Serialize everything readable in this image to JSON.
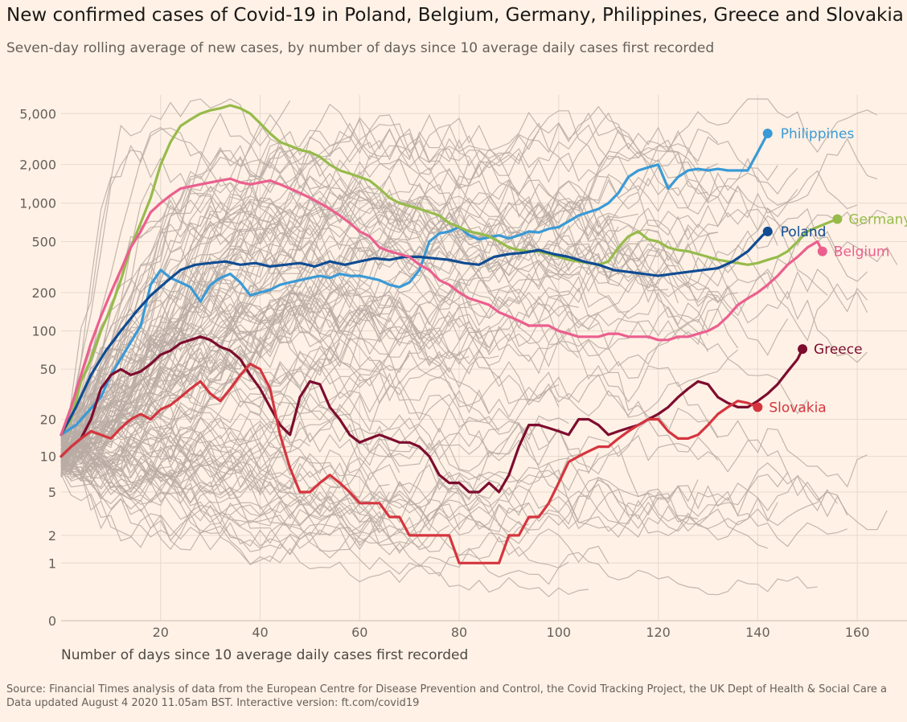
{
  "title": "New confirmed cases of Covid-19 in Poland, Belgium, Germany, Philippines, Greece and Slovakia",
  "subtitle": "Seven-day rolling average of new cases, by number of days since 10 average daily cases first recorded",
  "source_line1": "Source: Financial Times analysis of data from the European Centre for Disease Prevention and Control, the Covid Tracking Project, the UK Dept of Health & Social Care a",
  "source_line2": "Data updated August 4 2020 11.05am BST. Interactive version: ft.com/covid19",
  "chart_data": {
    "type": "line",
    "title": "New confirmed cases of Covid-19 in Poland, Belgium, Germany, Philippines, Greece and Slovakia",
    "xlabel": "Number of days since 10 average daily cases first recorded",
    "ylabel": "",
    "x_scale": "linear",
    "y_scale": "log",
    "xlim": [
      0,
      170
    ],
    "ylim": [
      0,
      7000
    ],
    "x_ticks": [
      20,
      40,
      60,
      80,
      100,
      120,
      140,
      160
    ],
    "y_ticks": [
      0,
      1,
      2,
      5,
      10,
      20,
      50,
      100,
      200,
      500,
      1000,
      2000,
      5000
    ],
    "y_tick_labels": [
      "0",
      "1",
      "2",
      "5",
      "10",
      "20",
      "50",
      "100",
      "200",
      "500",
      "1,000",
      "2,000",
      "5,000"
    ],
    "grid": true,
    "colors": {
      "background": "#fff1e5",
      "grid": "#e6d9ce",
      "other_countries": "#b8aca5",
      "Philippines": "#3a9ad6",
      "Germany": "#96bb4b",
      "Poland": "#0f4c93",
      "Belgium": "#eb5f8f",
      "Greece": "#7d0d2f",
      "Slovakia": "#d5353f"
    },
    "series": [
      {
        "name": "Philippines",
        "x": [
          0,
          3,
          5,
          8,
          10,
          13,
          16,
          18,
          20,
          22,
          24,
          26,
          28,
          30,
          32,
          34,
          36,
          38,
          40,
          42,
          44,
          46,
          48,
          50,
          52,
          54,
          56,
          58,
          60,
          62,
          64,
          66,
          68,
          70,
          72,
          74,
          76,
          78,
          80,
          82,
          84,
          86,
          88,
          90,
          92,
          94,
          96,
          98,
          100,
          102,
          104,
          106,
          108,
          110,
          112,
          114,
          116,
          118,
          120,
          122,
          124,
          126,
          128,
          130,
          132,
          134,
          136,
          138,
          140,
          142
        ],
        "y": [
          15,
          18,
          22,
          30,
          45,
          70,
          110,
          230,
          300,
          260,
          240,
          220,
          170,
          230,
          260,
          280,
          240,
          190,
          200,
          210,
          230,
          240,
          250,
          260,
          270,
          260,
          280,
          270,
          270,
          260,
          250,
          230,
          220,
          240,
          300,
          500,
          580,
          600,
          650,
          560,
          520,
          540,
          560,
          530,
          560,
          600,
          590,
          630,
          650,
          720,
          800,
          850,
          900,
          1000,
          1200,
          1600,
          1800,
          1900,
          2000,
          1300,
          1600,
          1800,
          1850,
          1800,
          1850,
          1800,
          1800,
          1800,
          2500,
          3500
        ]
      },
      {
        "name": "Germany",
        "x": [
          0,
          2,
          4,
          6,
          8,
          10,
          12,
          14,
          16,
          18,
          20,
          22,
          24,
          26,
          28,
          30,
          32,
          34,
          36,
          38,
          40,
          42,
          44,
          46,
          48,
          50,
          52,
          54,
          56,
          58,
          60,
          62,
          64,
          66,
          68,
          70,
          72,
          74,
          76,
          78,
          80,
          82,
          84,
          86,
          88,
          90,
          92,
          94,
          96,
          98,
          100,
          102,
          104,
          106,
          108,
          110,
          112,
          114,
          116,
          118,
          120,
          122,
          124,
          126,
          128,
          130,
          132,
          134,
          136,
          138,
          140,
          142,
          144,
          146,
          148,
          150,
          152,
          154,
          156
        ],
        "y": [
          15,
          20,
          40,
          60,
          100,
          150,
          250,
          450,
          700,
          1100,
          2000,
          3000,
          4000,
          4500,
          5000,
          5300,
          5500,
          5800,
          5500,
          5000,
          4200,
          3500,
          3000,
          2800,
          2600,
          2500,
          2300,
          2000,
          1800,
          1700,
          1600,
          1500,
          1300,
          1100,
          1000,
          950,
          900,
          850,
          800,
          700,
          650,
          600,
          580,
          550,
          500,
          450,
          430,
          420,
          420,
          400,
          380,
          360,
          350,
          340,
          330,
          350,
          450,
          550,
          600,
          520,
          500,
          450,
          430,
          420,
          400,
          380,
          360,
          350,
          340,
          330,
          340,
          360,
          380,
          420,
          500,
          600,
          650,
          700,
          750
        ]
      },
      {
        "name": "Poland",
        "x": [
          0,
          3,
          6,
          9,
          12,
          15,
          18,
          21,
          24,
          27,
          30,
          33,
          36,
          39,
          42,
          45,
          48,
          51,
          54,
          57,
          60,
          63,
          66,
          69,
          72,
          75,
          78,
          81,
          84,
          87,
          90,
          93,
          96,
          99,
          102,
          105,
          108,
          111,
          114,
          117,
          120,
          123,
          126,
          129,
          132,
          135,
          138,
          141,
          142
        ],
        "y": [
          15,
          25,
          45,
          70,
          100,
          140,
          190,
          240,
          300,
          330,
          340,
          350,
          330,
          340,
          320,
          330,
          340,
          320,
          350,
          330,
          350,
          370,
          360,
          380,
          380,
          370,
          360,
          340,
          330,
          380,
          400,
          410,
          430,
          400,
          380,
          350,
          330,
          300,
          290,
          280,
          270,
          280,
          290,
          300,
          310,
          350,
          420,
          560,
          600
        ]
      },
      {
        "name": "Belgium",
        "x": [
          0,
          2,
          4,
          6,
          8,
          10,
          12,
          14,
          16,
          18,
          20,
          22,
          24,
          26,
          28,
          30,
          32,
          34,
          36,
          38,
          40,
          42,
          44,
          46,
          48,
          50,
          52,
          54,
          56,
          58,
          60,
          62,
          64,
          66,
          68,
          70,
          72,
          74,
          76,
          78,
          80,
          82,
          84,
          86,
          88,
          90,
          92,
          94,
          96,
          98,
          100,
          102,
          104,
          106,
          108,
          110,
          112,
          114,
          116,
          118,
          120,
          122,
          124,
          126,
          128,
          130,
          132,
          134,
          136,
          138,
          140,
          142,
          144,
          146,
          148,
          150,
          152,
          153
        ],
        "y": [
          15,
          25,
          45,
          80,
          130,
          200,
          300,
          450,
          600,
          850,
          1000,
          1150,
          1300,
          1350,
          1400,
          1450,
          1500,
          1550,
          1450,
          1400,
          1450,
          1500,
          1400,
          1300,
          1200,
          1100,
          1000,
          900,
          800,
          700,
          600,
          550,
          450,
          420,
          400,
          380,
          330,
          300,
          250,
          230,
          200,
          180,
          170,
          160,
          140,
          130,
          120,
          110,
          110,
          110,
          100,
          95,
          90,
          90,
          90,
          95,
          95,
          90,
          90,
          90,
          85,
          85,
          90,
          90,
          95,
          100,
          110,
          130,
          160,
          180,
          200,
          230,
          270,
          330,
          380,
          450,
          500,
          420
        ]
      },
      {
        "name": "Greece",
        "x": [
          0,
          2,
          4,
          6,
          8,
          10,
          12,
          14,
          16,
          18,
          20,
          22,
          24,
          26,
          28,
          30,
          32,
          34,
          36,
          38,
          40,
          42,
          44,
          46,
          48,
          50,
          52,
          54,
          56,
          58,
          60,
          62,
          64,
          66,
          68,
          70,
          72,
          74,
          76,
          78,
          80,
          82,
          84,
          86,
          88,
          90,
          92,
          94,
          96,
          98,
          100,
          102,
          104,
          106,
          108,
          110,
          112,
          114,
          116,
          118,
          120,
          122,
          124,
          126,
          128,
          130,
          132,
          134,
          136,
          138,
          140,
          142,
          144,
          146,
          148,
          149
        ],
        "y": [
          10,
          12,
          14,
          20,
          35,
          45,
          50,
          45,
          48,
          55,
          65,
          70,
          80,
          85,
          90,
          85,
          75,
          70,
          60,
          45,
          35,
          25,
          18,
          15,
          30,
          40,
          38,
          25,
          20,
          15,
          13,
          14,
          15,
          14,
          13,
          13,
          12,
          10,
          7,
          6,
          6,
          5,
          5,
          6,
          5,
          7,
          12,
          18,
          18,
          17,
          16,
          15,
          20,
          20,
          18,
          15,
          16,
          17,
          18,
          20,
          22,
          25,
          30,
          35,
          40,
          38,
          30,
          27,
          25,
          25,
          28,
          32,
          38,
          48,
          60,
          72
        ]
      },
      {
        "name": "Slovakia",
        "x": [
          0,
          2,
          4,
          6,
          8,
          10,
          12,
          14,
          16,
          18,
          20,
          22,
          24,
          26,
          28,
          30,
          32,
          34,
          36,
          38,
          40,
          42,
          44,
          46,
          48,
          50,
          52,
          54,
          56,
          58,
          60,
          62,
          64,
          66,
          68,
          70,
          72,
          74,
          76,
          78,
          80,
          82,
          84,
          86,
          88,
          90,
          92,
          94,
          96,
          98,
          100,
          102,
          104,
          106,
          108,
          110,
          112,
          114,
          116,
          118,
          120,
          122,
          124,
          126,
          128,
          130,
          132,
          134,
          136,
          138,
          140
        ],
        "y": [
          10,
          12,
          14,
          16,
          15,
          14,
          17,
          20,
          22,
          20,
          24,
          26,
          30,
          35,
          40,
          32,
          28,
          35,
          45,
          55,
          50,
          35,
          15,
          8,
          5,
          5,
          6,
          7,
          6,
          5,
          4,
          4,
          4,
          3,
          3,
          2,
          2,
          2,
          2,
          2,
          1,
          1,
          1,
          1,
          1,
          2,
          2,
          3,
          3,
          4,
          6,
          9,
          10,
          11,
          12,
          12,
          14,
          16,
          18,
          20,
          20,
          16,
          14,
          14,
          15,
          18,
          22,
          25,
          28,
          27,
          25
        ]
      }
    ],
    "end_labels": [
      "Philippines",
      "Germany",
      "Poland",
      "Belgium",
      "Greece",
      "Slovakia"
    ]
  }
}
